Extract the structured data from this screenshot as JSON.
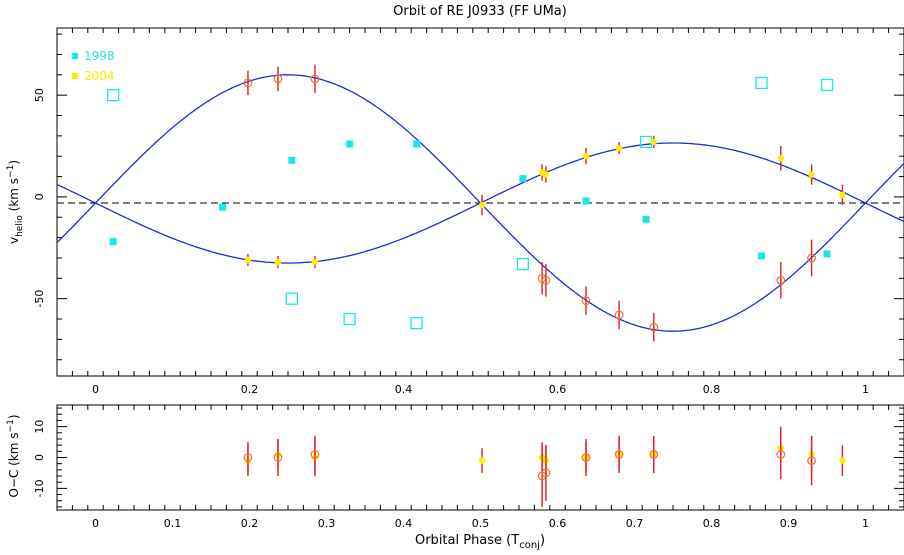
{
  "title": "Orbit of RE J0933 (FF UMa)",
  "colors": {
    "cyan": "#19e6e6",
    "yellow": "#ffee00",
    "red": "#e02020",
    "orange": "#f07030",
    "blue": "#1830d0",
    "axis": "#000000"
  },
  "chart_data": [
    {
      "type": "scatter",
      "panel": "top",
      "title": "Orbit of RE J0933 (FF UMa)",
      "ylabel": {
        "main": "v",
        "sub": "helio",
        "unit_open": " (km s",
        "unit_sup": "−1",
        "unit_close": ")"
      },
      "xlim": [
        -0.05,
        1.05
      ],
      "ylim": [
        -88,
        83
      ],
      "xticks": [
        0,
        0.2,
        0.4,
        0.6,
        0.8,
        1
      ],
      "yticks": [
        -50,
        0,
        50
      ],
      "legend": {
        "position": "top-left",
        "entries": [
          {
            "label": "1998",
            "color": "#19e6e6"
          },
          {
            "label": "2004",
            "color": "#ffee00"
          }
        ]
      },
      "gamma": -3,
      "curves": [
        {
          "name": "secondary-fit",
          "k": 63,
          "phase": 0.0,
          "sign": 1
        },
        {
          "name": "primary-fit",
          "k": 29.5,
          "phase": 0.0,
          "sign": -1
        }
      ],
      "series": [
        {
          "name": "1998",
          "marker": "filled-square",
          "x": [
            0.023,
            0.165,
            0.255,
            0.33,
            0.417,
            0.555,
            0.637,
            0.715,
            0.865,
            0.95
          ],
          "y": [
            -22,
            -5,
            18,
            26,
            26,
            9,
            -2,
            -11,
            -29,
            -28
          ]
        },
        {
          "name": "1998",
          "marker": "open-square",
          "x": [
            0.023,
            0.255,
            0.33,
            0.417,
            0.555,
            0.715,
            0.865,
            0.95
          ],
          "y": [
            50,
            -50,
            -60,
            -62,
            -33,
            27,
            56,
            55
          ]
        },
        {
          "name": "2004",
          "marker": "filled-circle-errorbar",
          "x": [
            0.198,
            0.237,
            0.285,
            0.502,
            0.58,
            0.585,
            0.637,
            0.68,
            0.725,
            0.89,
            0.93,
            0.97
          ],
          "y": [
            -31,
            -32,
            -32,
            -4,
            12,
            11,
            20,
            24,
            27,
            19,
            11,
            1
          ],
          "err": [
            3,
            3,
            3,
            5,
            4,
            4,
            4,
            3,
            3,
            6,
            5,
            5
          ]
        },
        {
          "name": "2004",
          "marker": "open-circle-errorbar",
          "x": [
            0.198,
            0.237,
            0.285,
            0.58,
            0.585,
            0.637,
            0.68,
            0.725,
            0.89,
            0.93
          ],
          "y": [
            56,
            58,
            58,
            -40,
            -41,
            -51,
            -58,
            -64,
            -41,
            -30
          ],
          "err": [
            6,
            6,
            7,
            8,
            8,
            7,
            7,
            7,
            9,
            9
          ]
        }
      ]
    },
    {
      "type": "scatter",
      "panel": "bottom",
      "xlabel": {
        "main": "Orbital Phase (T",
        "sub": "conj",
        "close": ")"
      },
      "ylabel": {
        "main": "O−C (km s",
        "sup": "−1",
        "close": ")"
      },
      "xlim": [
        -0.05,
        1.05
      ],
      "ylim": [
        -17,
        17
      ],
      "xticks": [
        0,
        0.1,
        0.2,
        0.3,
        0.4,
        0.5,
        0.6,
        0.7,
        0.8,
        0.9,
        1
      ],
      "xticklabels": [
        "0",
        "0.1",
        "0.2",
        "0.3",
        "0.4",
        "0.5",
        "0.6",
        "0.7",
        "0.8",
        "0.9",
        "1"
      ],
      "yticks": [
        -10,
        0,
        10
      ],
      "series": [
        {
          "name": "2004",
          "marker": "filled-circle-errorbar",
          "x": [
            0.198,
            0.237,
            0.285,
            0.502,
            0.58,
            0.585,
            0.637,
            0.68,
            0.725,
            0.89,
            0.93,
            0.97
          ],
          "y": [
            -1,
            1,
            0,
            -1,
            0,
            -1,
            0,
            1,
            1,
            3,
            1,
            -1
          ],
          "err": [
            5,
            5,
            6,
            4,
            5,
            5,
            5,
            6,
            6,
            7,
            6,
            5
          ]
        },
        {
          "name": "2004",
          "marker": "open-circle-errorbar",
          "x": [
            0.198,
            0.237,
            0.285,
            0.58,
            0.585,
            0.637,
            0.68,
            0.725,
            0.89,
            0.93
          ],
          "y": [
            0,
            0,
            1,
            -6,
            -5,
            0,
            1,
            1,
            1,
            -1
          ],
          "err": [
            5,
            6,
            6,
            10,
            9,
            6,
            6,
            6,
            8,
            8
          ]
        }
      ]
    }
  ]
}
